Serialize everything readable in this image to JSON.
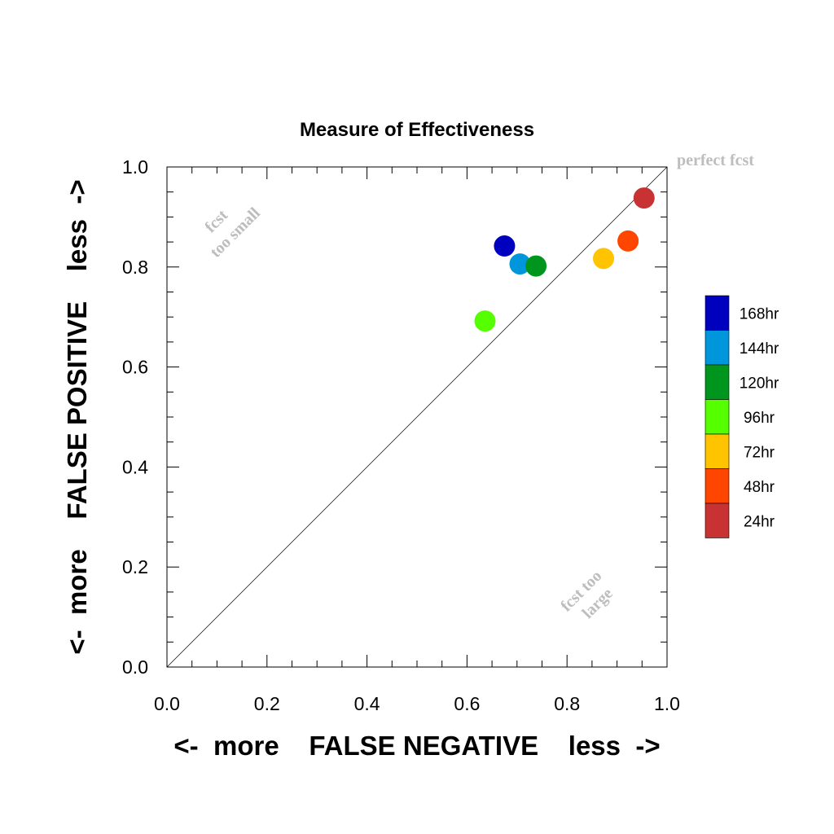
{
  "chart_data": {
    "type": "scatter",
    "title": "Measure of Effectiveness",
    "xlabel": "<-  more    FALSE NEGATIVE    less  ->",
    "ylabel": "<-  more    FALSE POSITIVE    less  ->",
    "xlim": [
      0.0,
      1.0
    ],
    "ylim": [
      0.0,
      1.0
    ],
    "x_ticks": [
      "0.0",
      "0.2",
      "0.4",
      "0.6",
      "0.8",
      "1.0"
    ],
    "y_ticks": [
      "0.0",
      "0.2",
      "0.4",
      "0.6",
      "0.8",
      "1.0"
    ],
    "grid": false,
    "reference_line": "diagonal y = x",
    "legend_position": "right",
    "annotations": {
      "top_left_line1": "fcst",
      "top_left_line2": "too small",
      "bottom_right_line1": "fcst too",
      "bottom_right_line2": "large",
      "top_right": "perfect fcst"
    },
    "series": [
      {
        "name": "168hr",
        "color": "#0000bf",
        "x": 0.675,
        "y": 0.842
      },
      {
        "name": "144hr",
        "color": "#0096dc",
        "x": 0.706,
        "y": 0.806
      },
      {
        "name": "120hr",
        "color": "#00961e",
        "x": 0.738,
        "y": 0.802
      },
      {
        "name": "96hr",
        "color": "#55ff00",
        "x": 0.636,
        "y": 0.692
      },
      {
        "name": "72hr",
        "color": "#ffc300",
        "x": 0.873,
        "y": 0.817
      },
      {
        "name": "48hr",
        "color": "#ff4600",
        "x": 0.922,
        "y": 0.852
      },
      {
        "name": "24hr",
        "color": "#c83232",
        "x": 0.954,
        "y": 0.938
      }
    ]
  }
}
